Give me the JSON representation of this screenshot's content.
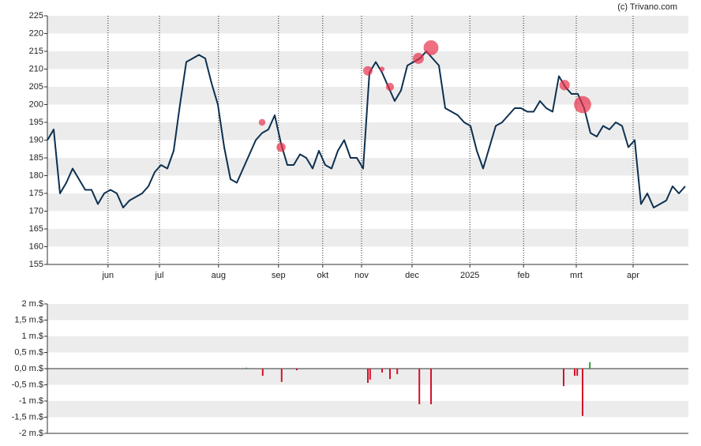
{
  "credit": "(c) Trivano.com",
  "chart_data": [
    {
      "type": "line",
      "color": "#0d3050",
      "grid": "bands",
      "x": [
        0,
        1,
        2,
        3,
        4,
        5,
        6,
        7,
        8,
        9,
        10,
        11,
        12,
        13,
        14,
        15,
        16,
        17,
        18,
        19,
        20,
        21,
        22,
        23,
        24,
        25,
        26,
        27,
        28,
        29,
        30,
        31,
        32,
        33,
        34,
        35,
        36,
        37,
        38,
        39,
        40,
        41,
        42,
        43,
        44,
        45,
        46,
        47,
        48,
        49,
        50,
        51,
        52,
        53,
        54,
        55,
        56,
        57,
        58,
        59,
        60,
        61,
        62,
        63,
        64,
        65,
        66,
        67,
        68,
        69,
        70,
        71,
        72,
        73,
        74,
        75,
        76,
        77,
        78,
        79,
        80,
        81,
        82,
        83,
        84,
        85,
        86,
        87,
        88,
        89,
        90,
        91,
        92,
        93,
        94,
        95,
        96,
        97,
        98,
        99,
        100,
        101
      ],
      "values": [
        190,
        193,
        175,
        178,
        182,
        179,
        176,
        176,
        172,
        175,
        176,
        175,
        171,
        173,
        174,
        175,
        177,
        181,
        183,
        182,
        187,
        200,
        212,
        213,
        214,
        213,
        206,
        200,
        188,
        179,
        178,
        182,
        186,
        190,
        192,
        193,
        197,
        189,
        183,
        183,
        186,
        185,
        182,
        187,
        183,
        182,
        187,
        190,
        185,
        185,
        182,
        209,
        212,
        209,
        205,
        201,
        204,
        211,
        212,
        213,
        215,
        213,
        211,
        199,
        198,
        197,
        195,
        194,
        187,
        182,
        188,
        194,
        195,
        197,
        199,
        199,
        198,
        198,
        201,
        199,
        198,
        208,
        205,
        203,
        203,
        199,
        192,
        191,
        194,
        193,
        195,
        194,
        188,
        190,
        172,
        175,
        171,
        172,
        173,
        177,
        175,
        177
      ],
      "xlim": [
        0,
        101.5
      ],
      "xticks": [
        {
          "value": 9.6,
          "label": "jun"
        },
        {
          "value": 17.75,
          "label": "jul"
        },
        {
          "value": 27.1,
          "label": "aug"
        },
        {
          "value": 36.6,
          "label": "sep"
        },
        {
          "value": 43.6,
          "label": "okt"
        },
        {
          "value": 49.75,
          "label": "nov"
        },
        {
          "value": 57.75,
          "label": "dec"
        },
        {
          "value": 66.9,
          "label": "2025"
        },
        {
          "value": 75.4,
          "label": "feb"
        },
        {
          "value": 83.75,
          "label": "mrt"
        },
        {
          "value": 92.75,
          "label": "apr"
        }
      ],
      "ylim": [
        155,
        225
      ],
      "yticks": [
        155,
        160,
        165,
        170,
        175,
        180,
        185,
        190,
        195,
        200,
        205,
        210,
        215,
        220,
        225
      ],
      "bubbles": {
        "color": "#e8304a",
        "x": [
          34,
          37,
          50.75,
          53,
          54.25,
          58.75,
          60.75,
          81.9,
          84.75
        ],
        "y": [
          195,
          188,
          209.5,
          210,
          205,
          213,
          216,
          205.5,
          200
        ],
        "size": [
          0.22,
          0.41,
          0.44,
          0.12,
          0.32,
          0.6,
          1.1,
          0.54,
          1.46
        ]
      }
    },
    {
      "type": "bar",
      "grid": "bands",
      "colors": {
        "positive": "#2e9e3a",
        "negative": "#d3112b"
      },
      "x": [
        31.5,
        34.1,
        37.1,
        39.5,
        50.75,
        51.1,
        53,
        54.25,
        55.4,
        58.9,
        60.75,
        81.75,
        83.5,
        83.9,
        84.75,
        85.9
      ],
      "values": [
        0.03,
        -0.22,
        -0.41,
        -0.05,
        -0.44,
        -0.34,
        -0.12,
        -0.32,
        -0.17,
        -1.1,
        -1.1,
        -0.54,
        -0.22,
        -0.22,
        -1.46,
        0.2
      ],
      "xlim": [
        0,
        101.5
      ],
      "ylim": [
        -2,
        2
      ],
      "yticks": [
        {
          "value": -2,
          "label": "-2 m.$"
        },
        {
          "value": -1.5,
          "label": "-1,5 m.$"
        },
        {
          "value": -1,
          "label": "-1 m.$"
        },
        {
          "value": -0.5,
          "label": "-0,5 m.$"
        },
        {
          "value": 0,
          "label": "0,0 m.$"
        },
        {
          "value": 0.5,
          "label": "0,5 m.$"
        },
        {
          "value": 1,
          "label": "1 m.$"
        },
        {
          "value": 1.5,
          "label": "1,5 m.$"
        },
        {
          "value": 2,
          "label": "2 m.$"
        }
      ]
    }
  ]
}
